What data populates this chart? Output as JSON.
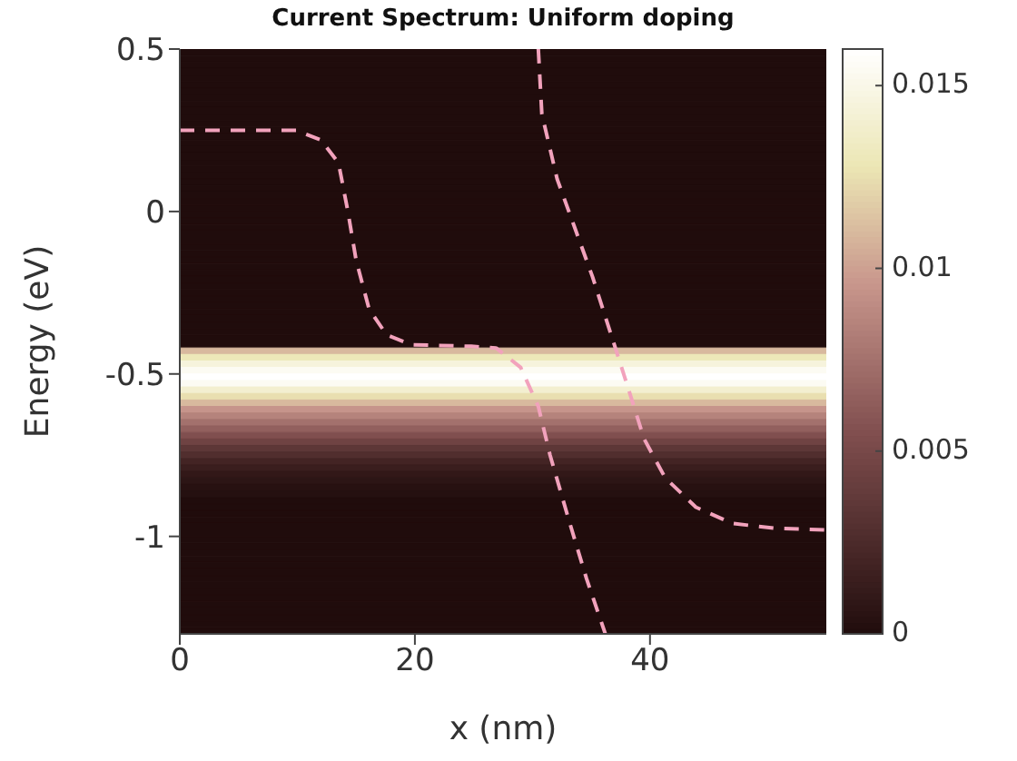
{
  "chart_data": {
    "type": "heatmap",
    "title": "Current Spectrum: Uniform doping",
    "xlabel": "x (nm)",
    "ylabel": "Energy (eV)",
    "xlim": [
      0,
      55
    ],
    "ylim": [
      -1.3,
      0.5
    ],
    "xticks": [
      0,
      20,
      40
    ],
    "yticks": [
      -1,
      -0.5,
      0,
      0.5
    ],
    "clim": [
      0,
      0.016
    ],
    "cticks": [
      0,
      0.005,
      0.01,
      0.015
    ],
    "grid": false,
    "cells": [
      [
        0
      ],
      [
        0
      ],
      [
        0
      ],
      [
        0
      ],
      [
        0
      ],
      [
        0
      ],
      [
        0
      ],
      [
        0
      ],
      [
        0
      ],
      [
        0
      ],
      [
        0
      ],
      [
        0
      ],
      [
        0
      ],
      [
        0
      ],
      [
        0
      ],
      [
        0
      ],
      [
        0
      ],
      [
        0
      ],
      [
        0
      ],
      [
        0
      ],
      [
        0
      ],
      [
        0
      ],
      [
        0
      ],
      [
        0
      ],
      [
        0
      ],
      [
        0
      ],
      [
        0
      ],
      [
        0
      ],
      [
        0
      ],
      [
        0
      ],
      [
        0
      ],
      [
        0
      ],
      [
        0
      ],
      [
        0
      ],
      [
        0
      ],
      [
        0
      ],
      [
        0
      ],
      [
        0
      ],
      [
        0
      ],
      [
        0
      ],
      [
        0
      ],
      [
        0
      ],
      [
        0
      ],
      [
        0
      ],
      [
        0
      ],
      [
        0
      ],
      [
        0.011
      ],
      [
        0.013
      ],
      [
        0.0145
      ],
      [
        0.0155
      ],
      [
        0.016
      ],
      [
        0.0155
      ],
      [
        0.014
      ],
      [
        0.0125
      ],
      [
        0.011
      ],
      [
        0.0095
      ],
      [
        0.0085
      ],
      [
        0.0075
      ],
      [
        0.0065
      ],
      [
        0.0055
      ],
      [
        0.0045
      ],
      [
        0.0035
      ],
      [
        0.0028
      ],
      [
        0.002
      ],
      [
        0.0015
      ],
      [
        0.001
      ],
      [
        0.0007
      ],
      [
        0.0004
      ],
      [
        0.0003
      ],
      [
        0
      ],
      [
        0
      ],
      [
        0
      ],
      [
        0
      ],
      [
        0
      ],
      [
        0
      ],
      [
        0
      ],
      [
        0
      ],
      [
        0
      ],
      [
        0
      ],
      [
        0
      ],
      [
        0
      ],
      [
        0
      ],
      [
        0
      ],
      [
        0
      ],
      [
        0
      ],
      [
        0
      ],
      [
        0
      ],
      [
        0
      ],
      [
        0
      ],
      [
        0
      ]
    ],
    "series": [
      {
        "type": "line",
        "color": "#f2a2bc",
        "line_style": "dashed",
        "x": [
          0,
          9.9,
          12,
          13.5,
          14.3,
          15,
          16.1,
          17.6,
          19.7,
          24.8,
          26.9,
          29,
          30.5,
          31.5,
          33.1,
          34.6,
          36.2
        ],
        "values": [
          0.25,
          0.25,
          0.22,
          0.15,
          0,
          -0.15,
          -0.3,
          -0.38,
          -0.41,
          -0.415,
          -0.42,
          -0.48,
          -0.6,
          -0.75,
          -0.95,
          -1.13,
          -1.3
        ]
      },
      {
        "type": "line",
        "color": "#f2a2bc",
        "line_style": "dashed",
        "x": [
          30.5,
          30.8,
          32.1,
          33.6,
          35.1,
          36.7,
          38.2,
          39.5,
          41.3,
          43.9,
          47,
          50.6,
          55
        ],
        "values": [
          0.5,
          0.3,
          0.1,
          -0.05,
          -0.2,
          -0.38,
          -0.55,
          -0.7,
          -0.82,
          -0.91,
          -0.96,
          -0.975,
          -0.98
        ]
      }
    ]
  }
}
